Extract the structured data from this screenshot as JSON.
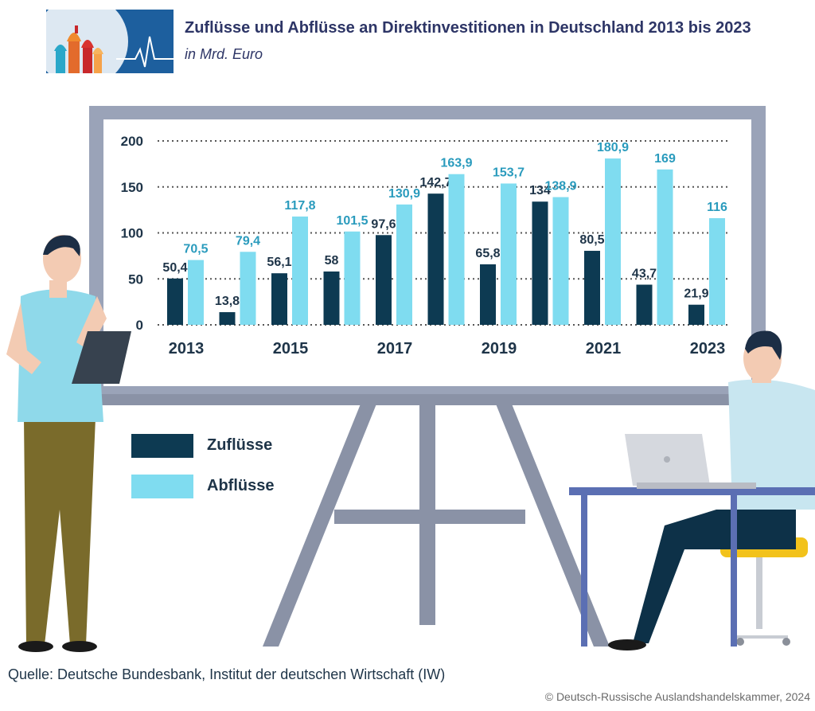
{
  "header": {
    "logo_icon": "moscow-domes-heartbeat-logo",
    "title": "Zuflüsse und Abflüsse an Direktinvestitionen in Deutschland 2013 bis 2023",
    "subtitle": "in Mrd. Euro"
  },
  "chart_data": {
    "type": "bar",
    "title": "Zuflüsse und Abflüsse an Direktinvestitionen in Deutschland 2013 bis 2023",
    "ylabel": "in Mrd. Euro",
    "categories": [
      "2013",
      "2014",
      "2015",
      "2016",
      "2017",
      "2018",
      "2019",
      "2020",
      "2021",
      "2022",
      "2023"
    ],
    "x_tick_labels": [
      "2013",
      "",
      "2015",
      "",
      "2017",
      "",
      "2019",
      "",
      "2021",
      "",
      "2023"
    ],
    "yticks": [
      "0",
      "50",
      "100",
      "150",
      "200"
    ],
    "ylim": [
      0,
      200
    ],
    "grid": true,
    "series": [
      {
        "name": "Zuflüsse",
        "color": "#0d3a52",
        "values": [
          50.4,
          13.8,
          56.1,
          58,
          97.6,
          142.7,
          65.8,
          134,
          80.5,
          43.7,
          21.9
        ],
        "labels": [
          "50,4",
          "13,8",
          "56,1",
          "58",
          "97,6",
          "142,7",
          "65,8",
          "134",
          "80,5",
          "43,7",
          "21,9"
        ]
      },
      {
        "name": "Abflüsse",
        "color": "#7fdcf0",
        "values": [
          70.5,
          79.4,
          117.8,
          101.5,
          130.9,
          163.9,
          153.7,
          138.9,
          180.9,
          169,
          116
        ],
        "labels": [
          "70,5",
          "79,4",
          "117,8",
          "101,5",
          "130,9",
          "163,9",
          "153,7",
          "138,9",
          "180,9",
          "169",
          "116"
        ]
      }
    ]
  },
  "legend": {
    "inflow_label": "Zuflüsse",
    "outflow_label": "Abflüsse"
  },
  "footer": {
    "source": "Quelle: Deutsche Bundesbank, Institut der deutschen Wirtschaft (IW)",
    "copyright": "© Deutsch-Russische Auslandshandelskammer, 2024"
  }
}
